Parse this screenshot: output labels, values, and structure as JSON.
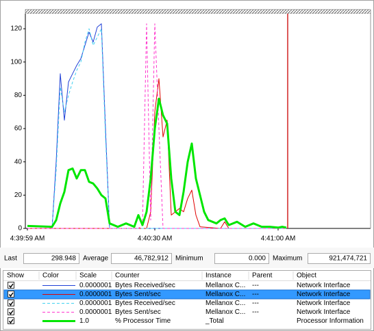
{
  "chart_data": {
    "type": "line",
    "xlim": [
      -0.5,
      83.5
    ],
    "xticks": [
      {
        "value": 0,
        "label": "4:39:59 AM"
      },
      {
        "value": 31,
        "label": "4:40:30 AM"
      },
      {
        "value": 61,
        "label": "4:41:00 AM"
      }
    ],
    "ylim": [
      0,
      130
    ],
    "yticks": [
      0,
      20,
      40,
      60,
      80,
      100,
      120
    ],
    "series": [
      {
        "name": "Bytes Received/sec",
        "color": "#1f3fd6",
        "dashed": false,
        "width": 1,
        "x": [
          0,
          6,
          7,
          8,
          9,
          10,
          11,
          12,
          13,
          14,
          15,
          16,
          17,
          18,
          19,
          20,
          63
        ],
        "values": [
          0,
          0,
          40,
          93,
          65,
          88,
          93,
          98,
          102,
          110,
          118,
          112,
          121,
          123,
          60,
          0,
          0
        ]
      },
      {
        "name": "Bytes Sent/sec",
        "color": "#e00000",
        "dashed": false,
        "width": 1,
        "x": [
          0,
          29,
          30,
          31,
          32,
          33,
          34,
          35,
          37,
          38,
          39,
          40,
          41,
          42,
          47,
          48,
          49,
          63
        ],
        "values": [
          0,
          0,
          10,
          70,
          90,
          55,
          65,
          8,
          12,
          10,
          18,
          23,
          8,
          1,
          0,
          4,
          0,
          0
        ]
      },
      {
        "name": "Bytes Received/sec",
        "color": "#40d0f0",
        "dashed": true,
        "width": 1,
        "x": [
          0,
          6,
          7,
          8,
          9,
          10,
          11,
          12,
          13,
          14,
          15,
          16,
          17,
          18,
          19,
          20,
          63
        ],
        "values": [
          0,
          0,
          35,
          85,
          70,
          80,
          88,
          95,
          100,
          112,
          120,
          110,
          115,
          120,
          55,
          0,
          0
        ]
      },
      {
        "name": "Bytes Sent/sec",
        "color": "#ff33cc",
        "dashed": true,
        "width": 1,
        "x": [
          0,
          27,
          28,
          29,
          30,
          31,
          32,
          33,
          63
        ],
        "values": [
          0,
          0,
          2,
          123,
          5,
          123,
          60,
          0,
          0
        ]
      },
      {
        "name": "% Processor Time",
        "color": "#00e600",
        "dashed": false,
        "width": 3,
        "x": [
          0,
          6,
          7,
          8,
          9,
          10,
          11,
          12,
          13,
          14,
          15,
          16,
          17,
          18,
          19,
          20,
          22,
          24,
          26,
          27,
          28,
          29,
          30,
          31,
          32,
          33,
          34,
          35,
          36,
          37,
          38,
          39,
          40,
          41,
          42,
          43,
          44,
          46,
          47,
          48,
          49,
          51,
          53,
          55,
          57,
          59,
          61,
          62,
          63
        ],
        "values": [
          1.5,
          1,
          5,
          15,
          22,
          35,
          36,
          30,
          35,
          35,
          28,
          27,
          24,
          20,
          18,
          3,
          1,
          3,
          1,
          8,
          2,
          10,
          30,
          60,
          78,
          68,
          63,
          30,
          10,
          8,
          22,
          40,
          51,
          30,
          20,
          10,
          5,
          3,
          5,
          6,
          2,
          4,
          1,
          3,
          1,
          1,
          0.5,
          1,
          0.5
        ]
      }
    ]
  },
  "stats": {
    "last_label": "Last",
    "last": "298.948",
    "average_label": "Average",
    "average": "46,782,912",
    "minimum_label": "Minimum",
    "minimum": "0.000",
    "maximum_label": "Maximum",
    "maximum": "921,474,721"
  },
  "counters": {
    "columns": [
      "Show",
      "Color",
      "Scale",
      "Counter",
      "Instance",
      "Parent",
      "Object"
    ],
    "rows": [
      {
        "scale": "0.0000001",
        "instance": "Mellanox C...",
        "parent": "---",
        "object": "Network Interface"
      },
      {
        "scale": "0.0000001",
        "instance": "Mellanox C...",
        "parent": "---",
        "object": "Network Interface"
      },
      {
        "scale": "0.0000001",
        "instance": "Mellanox C...",
        "parent": "---",
        "object": "Network Interface"
      },
      {
        "scale": "0.0000001",
        "instance": "Mellanox C...",
        "parent": "---",
        "object": "Network Interface"
      },
      {
        "scale": "1.0",
        "instance": "_Total",
        "object": "Processor Information"
      }
    ]
  }
}
